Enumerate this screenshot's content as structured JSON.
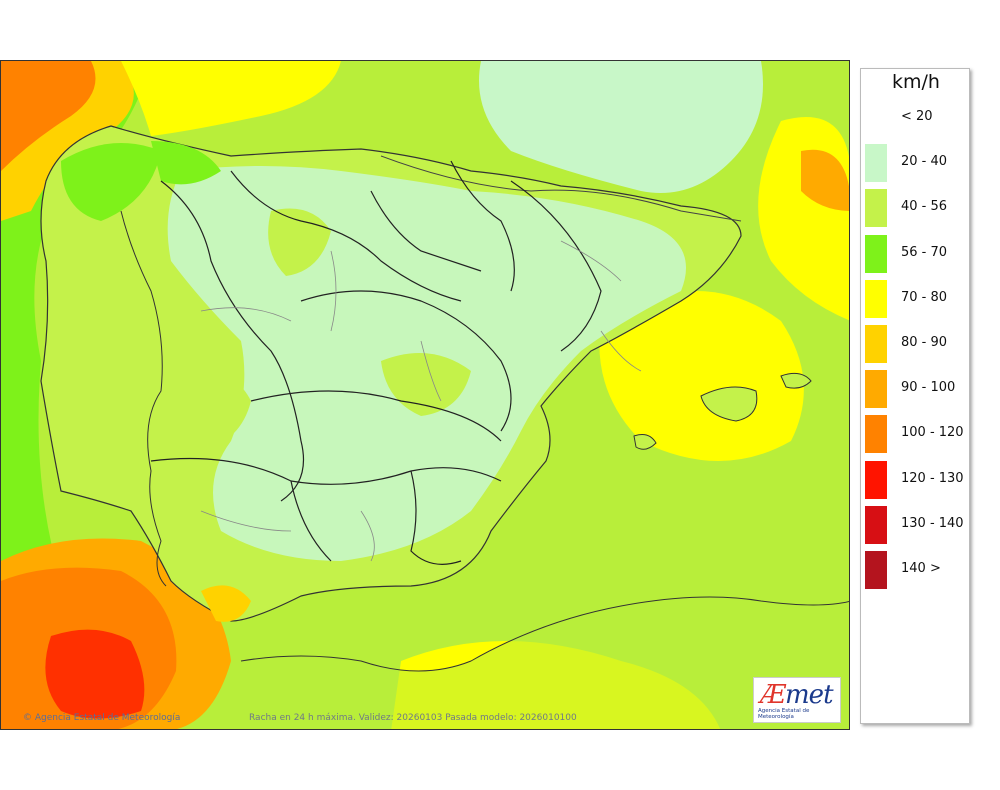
{
  "legend": {
    "unit": "km/h",
    "classes": [
      {
        "label": "< 20",
        "color": "#ffffff"
      },
      {
        "label": "20 - 40",
        "color": "#c8f7c8"
      },
      {
        "label": "40 - 56",
        "color": "#c4f24a"
      },
      {
        "label": "56 - 70",
        "color": "#7ef21a"
      },
      {
        "label": "70 - 80",
        "color": "#ffff00"
      },
      {
        "label": "80 - 90",
        "color": "#ffd200"
      },
      {
        "label": "90 - 100",
        "color": "#ffaa00"
      },
      {
        "label": "100 - 120",
        "color": "#ff8200"
      },
      {
        "label": "120 - 130",
        "color": "#ff1400"
      },
      {
        "label": "130 - 140",
        "color": "#d70f14"
      },
      {
        "label": "140 >",
        "color": "#b4141e"
      }
    ]
  },
  "credits": {
    "agency": "© Agencia Estatal de Meteorología",
    "caption": "Racha en 24 h máxima. Validez: 20260103 Pasada modelo: 2026010100"
  },
  "logo": {
    "mark_a": "Æ",
    "mark_rest": "met",
    "subtitle": "Agencia Estatal de Meteorología"
  }
}
